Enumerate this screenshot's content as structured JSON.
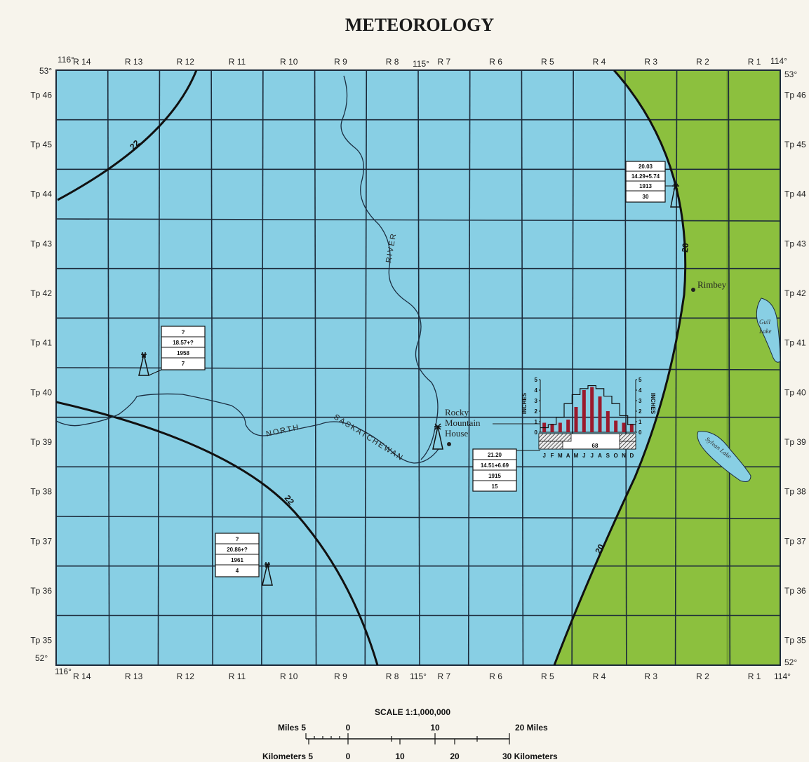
{
  "title": "METEOROLOGY",
  "colors": {
    "zone_22_plus": "#88cfe4",
    "zone_20_less": "#8cc03e",
    "grid": "#1c2a3a",
    "precip_bar": "#9a1a2c",
    "background": "#f7f4ec"
  },
  "ranges_top": [
    "R 14",
    "R 13",
    "R 12",
    "R 11",
    "R 10",
    "R 9",
    "R 8",
    "R 7",
    "R 6",
    "R 5",
    "R 4",
    "R 3",
    "R 2",
    "R 1"
  ],
  "ranges_bottom": [
    "R 14",
    "R 13",
    "R 12",
    "R 11",
    "R 10",
    "R 9",
    "R 8",
    "R 7",
    "R 6",
    "R 5",
    "R 4",
    "R 3",
    "R 2",
    "R 1"
  ],
  "townships_left": [
    "Tp 46",
    "Tp 45",
    "Tp 44",
    "Tp 43",
    "Tp 42",
    "Tp 41",
    "Tp 40",
    "Tp 39",
    "Tp 38",
    "Tp 37",
    "Tp 36",
    "Tp 35"
  ],
  "townships_right": [
    "Tp 46",
    "Tp 45",
    "Tp 44",
    "Tp 43",
    "Tp 42",
    "Tp 41",
    "Tp 40",
    "Tp 39",
    "Tp 38",
    "Tp 37",
    "Tp 36",
    "Tp 35"
  ],
  "coords": {
    "lon_116_top": "116°",
    "lon_115_top": "115°",
    "lon_114_top": "114°",
    "lon_116_bottom": "116°",
    "lon_115_bottom": "115°",
    "lon_114_bottom": "114°",
    "lat_53_left": "53°",
    "lat_53_right": "53°",
    "lat_52_left": "52°",
    "lat_52_right": "52°"
  },
  "isohyets": {
    "nw_label": "22",
    "sw_label": "22",
    "east_label_upper": "20",
    "east_label_lower": "20"
  },
  "places": {
    "rocky_line1": "Rocky",
    "rocky_line2": "Mountain",
    "rocky_line3": "House",
    "rimbey": "Rimbey",
    "gull_line1": "Gull",
    "gull_line2": "Lake",
    "sylvan": "Sylvan Lake"
  },
  "river": {
    "north": "NORTH",
    "sask": "SASKATCHEWAN",
    "river_word": "RIVER"
  },
  "stations": {
    "rimbey": [
      "20.03",
      "14.29+5.74",
      "1913",
      "30"
    ],
    "west": [
      "?",
      "18.57+?",
      "1958",
      "7"
    ],
    "rocky": [
      "21.20",
      "14.51+6.69",
      "1915",
      "15"
    ],
    "southwest": [
      "?",
      "20.86+?",
      "1961",
      "4"
    ]
  },
  "chart_data": {
    "type": "bar",
    "categories": [
      "J",
      "F",
      "M",
      "A",
      "M",
      "J",
      "J",
      "A",
      "S",
      "O",
      "N",
      "D"
    ],
    "series": [
      {
        "values": [
          0.9,
          0.8,
          0.9,
          1.2,
          2.4,
          4.0,
          4.3,
          3.4,
          2.0,
          1.1,
          0.9,
          0.8
        ]
      }
    ],
    "ylabel": "INCHES",
    "ylim": [
      0,
      5
    ],
    "yticks": [
      "5",
      "4",
      "3",
      "2",
      "1",
      "0"
    ],
    "temperature_line": [
      -12,
      -10,
      -5,
      4,
      10,
      14,
      16,
      14,
      9,
      4,
      -4,
      -10
    ],
    "frost_free_days": "68",
    "month_axis_label": "JFMAMJJASOND"
  },
  "scale": {
    "title": "SCALE 1:1,000,000",
    "miles_left": "Miles 5",
    "miles_0": "0",
    "miles_10": "10",
    "miles_right": "20 Miles",
    "km_left": "Kilometers 5",
    "km_0": "0",
    "km_10": "10",
    "km_20": "20",
    "km_right": "30 Kilometers"
  }
}
